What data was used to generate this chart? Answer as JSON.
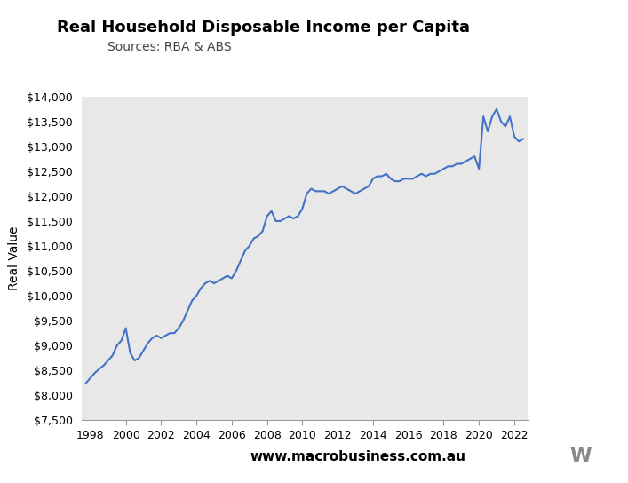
{
  "title": "Real Household Disposable Income per Capita",
  "subtitle": "Sources: RBA & ABS",
  "ylabel": "Real Value",
  "website": "www.macrobusiness.com.au",
  "line_color": "#4472C4",
  "background_color": "#E8E8E8",
  "figure_background": "#FFFFFF",
  "logo_color": "#CC0000",
  "ylim": [
    7500,
    14000
  ],
  "yticks": [
    7500,
    8000,
    8500,
    9000,
    9500,
    10000,
    10500,
    11000,
    11500,
    12000,
    12500,
    13000,
    13500,
    14000
  ],
  "xlim_start": 1997.5,
  "xlim_end": 2022.75,
  "xticks": [
    1998,
    2000,
    2002,
    2004,
    2006,
    2008,
    2010,
    2012,
    2014,
    2016,
    2018,
    2020,
    2022
  ],
  "dates": [
    1997.75,
    1998.0,
    1998.25,
    1998.5,
    1998.75,
    1999.0,
    1999.25,
    1999.5,
    1999.75,
    2000.0,
    2000.25,
    2000.5,
    2000.75,
    2001.0,
    2001.25,
    2001.5,
    2001.75,
    2002.0,
    2002.25,
    2002.5,
    2002.75,
    2003.0,
    2003.25,
    2003.5,
    2003.75,
    2004.0,
    2004.25,
    2004.5,
    2004.75,
    2005.0,
    2005.25,
    2005.5,
    2005.75,
    2006.0,
    2006.25,
    2006.5,
    2006.75,
    2007.0,
    2007.25,
    2007.5,
    2007.75,
    2008.0,
    2008.25,
    2008.5,
    2008.75,
    2009.0,
    2009.25,
    2009.5,
    2009.75,
    2010.0,
    2010.25,
    2010.5,
    2010.75,
    2011.0,
    2011.25,
    2011.5,
    2011.75,
    2012.0,
    2012.25,
    2012.5,
    2012.75,
    2013.0,
    2013.25,
    2013.5,
    2013.75,
    2014.0,
    2014.25,
    2014.5,
    2014.75,
    2015.0,
    2015.25,
    2015.5,
    2015.75,
    2016.0,
    2016.25,
    2016.5,
    2016.75,
    2017.0,
    2017.25,
    2017.5,
    2017.75,
    2018.0,
    2018.25,
    2018.5,
    2018.75,
    2019.0,
    2019.25,
    2019.5,
    2019.75,
    2020.0,
    2020.25,
    2020.5,
    2020.75,
    2021.0,
    2021.25,
    2021.5,
    2021.75,
    2022.0,
    2022.25,
    2022.5
  ],
  "values": [
    8250,
    8350,
    8450,
    8530,
    8600,
    8700,
    8800,
    9000,
    9100,
    9350,
    8850,
    8700,
    8750,
    8900,
    9050,
    9150,
    9200,
    9150,
    9200,
    9250,
    9250,
    9350,
    9500,
    9700,
    9900,
    10000,
    10150,
    10250,
    10300,
    10250,
    10300,
    10350,
    10400,
    10350,
    10500,
    10700,
    10900,
    11000,
    11150,
    11200,
    11300,
    11600,
    11700,
    11500,
    11500,
    11550,
    11600,
    11550,
    11600,
    11750,
    12050,
    12150,
    12100,
    12100,
    12100,
    12050,
    12100,
    12150,
    12200,
    12150,
    12100,
    12050,
    12100,
    12150,
    12200,
    12350,
    12400,
    12400,
    12450,
    12350,
    12300,
    12300,
    12350,
    12350,
    12350,
    12400,
    12450,
    12400,
    12450,
    12450,
    12500,
    12550,
    12600,
    12600,
    12650,
    12650,
    12700,
    12750,
    12800,
    12550,
    13600,
    13300,
    13600,
    13750,
    13500,
    13400,
    13600,
    13200,
    13100,
    13150
  ]
}
